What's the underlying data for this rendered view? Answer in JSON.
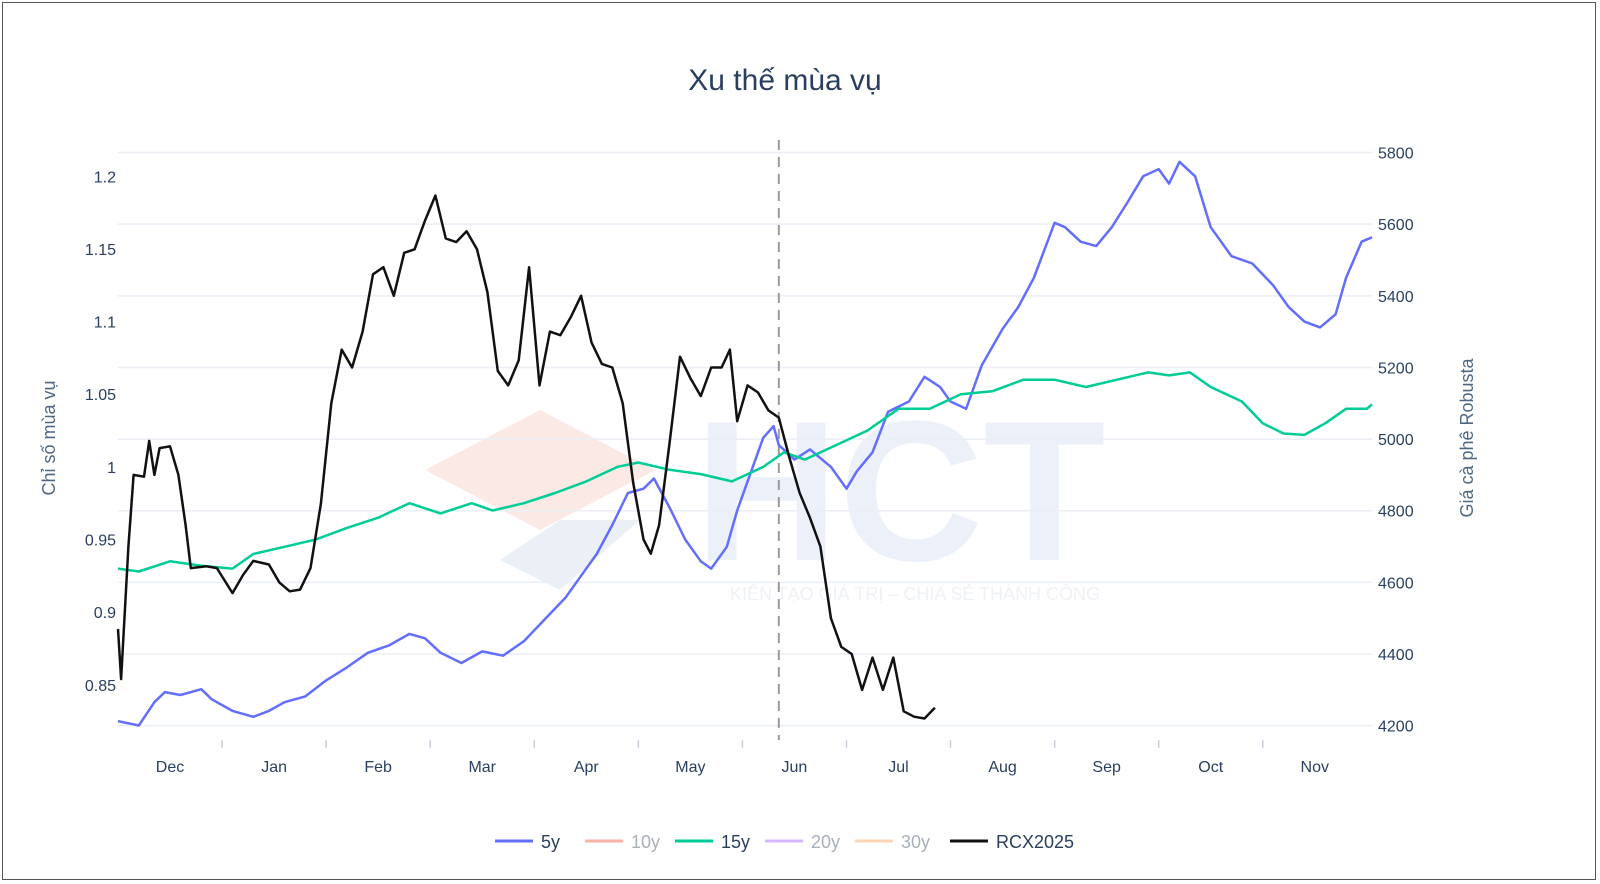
{
  "chart_data": {
    "type": "line",
    "title": "Xu thế mùa vụ",
    "watermark": {
      "logo": "HCT",
      "tagline": "KIẾN TẠO GIÁ TRỊ – CHIA SẺ THÀNH CÔNG"
    },
    "x": {
      "tick_labels": [
        "Dec",
        "Jan",
        "Feb",
        "Mar",
        "Apr",
        "May",
        "Jun",
        "Jul",
        "Aug",
        "Sep",
        "Oct",
        "Nov"
      ],
      "range": [
        0,
        12.05
      ],
      "divider_at": 6.35
    },
    "y_left": {
      "label": "Chỉ số mùa vụ",
      "range": [
        0.812,
        1.225
      ],
      "ticks": [
        0.85,
        0.9,
        0.95,
        1,
        1.05,
        1.1,
        1.15,
        1.2
      ],
      "tick_labels": [
        "0.85",
        "0.9",
        "0.95",
        "1",
        "1.05",
        "1.1",
        "1.15",
        "1.2"
      ]
    },
    "y_right": {
      "label": "Giá cà phê Robusta",
      "range": [
        4160,
        5835
      ],
      "ticks": [
        4200,
        4400,
        4600,
        4800,
        5000,
        5200,
        5400,
        5600,
        5800
      ],
      "tick_labels": [
        "4200",
        "4400",
        "4600",
        "4800",
        "5000",
        "5200",
        "5400",
        "5600",
        "5800"
      ]
    },
    "legend": {
      "position": "bottom-center",
      "items": [
        {
          "name": "5y",
          "color": "#636efa",
          "active": true
        },
        {
          "name": "10y",
          "color": "#ef553b",
          "active": false
        },
        {
          "name": "15y",
          "color": "#00cc96",
          "active": true
        },
        {
          "name": "20y",
          "color": "#ab63fa",
          "active": false
        },
        {
          "name": "30y",
          "color": "#ffa15a",
          "active": false
        },
        {
          "name": "RCX2025",
          "color": "#111111",
          "active": true
        }
      ]
    },
    "series": [
      {
        "name": "5y",
        "axis": "left",
        "color": "#636efa",
        "points": [
          [
            0,
            0.825
          ],
          [
            0.2,
            0.822
          ],
          [
            0.35,
            0.838
          ],
          [
            0.45,
            0.845
          ],
          [
            0.6,
            0.843
          ],
          [
            0.8,
            0.847
          ],
          [
            0.9,
            0.84
          ],
          [
            1.1,
            0.832
          ],
          [
            1.3,
            0.828
          ],
          [
            1.45,
            0.832
          ],
          [
            1.6,
            0.838
          ],
          [
            1.8,
            0.842
          ],
          [
            2.0,
            0.853
          ],
          [
            2.2,
            0.862
          ],
          [
            2.4,
            0.872
          ],
          [
            2.6,
            0.877
          ],
          [
            2.8,
            0.885
          ],
          [
            2.95,
            0.882
          ],
          [
            3.1,
            0.872
          ],
          [
            3.3,
            0.865
          ],
          [
            3.5,
            0.873
          ],
          [
            3.7,
            0.87
          ],
          [
            3.9,
            0.88
          ],
          [
            4.1,
            0.895
          ],
          [
            4.3,
            0.91
          ],
          [
            4.45,
            0.925
          ],
          [
            4.6,
            0.94
          ],
          [
            4.75,
            0.96
          ],
          [
            4.9,
            0.982
          ],
          [
            5.05,
            0.985
          ],
          [
            5.15,
            0.992
          ],
          [
            5.3,
            0.972
          ],
          [
            5.45,
            0.95
          ],
          [
            5.6,
            0.935
          ],
          [
            5.7,
            0.93
          ],
          [
            5.85,
            0.945
          ],
          [
            5.95,
            0.97
          ],
          [
            6.05,
            0.99
          ],
          [
            6.2,
            1.02
          ],
          [
            6.3,
            1.028
          ],
          [
            6.35,
            1.015
          ],
          [
            6.5,
            1.005
          ],
          [
            6.65,
            1.012
          ],
          [
            6.85,
            1.0
          ],
          [
            7.0,
            0.985
          ],
          [
            7.1,
            0.997
          ],
          [
            7.25,
            1.01
          ],
          [
            7.4,
            1.038
          ],
          [
            7.6,
            1.045
          ],
          [
            7.75,
            1.062
          ],
          [
            7.9,
            1.055
          ],
          [
            8.0,
            1.045
          ],
          [
            8.15,
            1.04
          ],
          [
            8.3,
            1.07
          ],
          [
            8.5,
            1.095
          ],
          [
            8.65,
            1.11
          ],
          [
            8.8,
            1.13
          ],
          [
            9.0,
            1.168
          ],
          [
            9.1,
            1.165
          ],
          [
            9.25,
            1.155
          ],
          [
            9.4,
            1.152
          ],
          [
            9.55,
            1.165
          ],
          [
            9.7,
            1.182
          ],
          [
            9.85,
            1.2
          ],
          [
            10.0,
            1.205
          ],
          [
            10.1,
            1.195
          ],
          [
            10.2,
            1.21
          ],
          [
            10.35,
            1.2
          ],
          [
            10.5,
            1.165
          ],
          [
            10.7,
            1.145
          ],
          [
            10.9,
            1.14
          ],
          [
            11.1,
            1.125
          ],
          [
            11.25,
            1.11
          ],
          [
            11.4,
            1.1
          ],
          [
            11.55,
            1.096
          ],
          [
            11.7,
            1.105
          ],
          [
            11.8,
            1.13
          ],
          [
            11.95,
            1.155
          ],
          [
            12.05,
            1.158
          ]
        ]
      },
      {
        "name": "15y",
        "axis": "left",
        "color": "#00cc96",
        "points": [
          [
            0,
            0.93
          ],
          [
            0.2,
            0.928
          ],
          [
            0.5,
            0.935
          ],
          [
            0.8,
            0.932
          ],
          [
            1.1,
            0.93
          ],
          [
            1.3,
            0.94
          ],
          [
            1.6,
            0.945
          ],
          [
            1.9,
            0.95
          ],
          [
            2.2,
            0.958
          ],
          [
            2.5,
            0.965
          ],
          [
            2.8,
            0.975
          ],
          [
            3.1,
            0.968
          ],
          [
            3.4,
            0.975
          ],
          [
            3.6,
            0.97
          ],
          [
            3.9,
            0.975
          ],
          [
            4.2,
            0.982
          ],
          [
            4.5,
            0.99
          ],
          [
            4.8,
            1.0
          ],
          [
            5.0,
            1.003
          ],
          [
            5.3,
            0.998
          ],
          [
            5.6,
            0.995
          ],
          [
            5.9,
            0.99
          ],
          [
            6.2,
            1.0
          ],
          [
            6.4,
            1.01
          ],
          [
            6.6,
            1.005
          ],
          [
            6.9,
            1.015
          ],
          [
            7.2,
            1.025
          ],
          [
            7.5,
            1.04
          ],
          [
            7.8,
            1.04
          ],
          [
            8.1,
            1.05
          ],
          [
            8.4,
            1.052
          ],
          [
            8.7,
            1.06
          ],
          [
            9.0,
            1.06
          ],
          [
            9.3,
            1.055
          ],
          [
            9.6,
            1.06
          ],
          [
            9.9,
            1.065
          ],
          [
            10.1,
            1.063
          ],
          [
            10.3,
            1.065
          ],
          [
            10.5,
            1.055
          ],
          [
            10.8,
            1.045
          ],
          [
            11.0,
            1.03
          ],
          [
            11.2,
            1.023
          ],
          [
            11.4,
            1.022
          ],
          [
            11.6,
            1.03
          ],
          [
            11.8,
            1.04
          ],
          [
            12.0,
            1.04
          ],
          [
            12.05,
            1.043
          ]
        ]
      },
      {
        "name": "RCX2025",
        "axis": "right",
        "color": "#111111",
        "points": [
          [
            0,
            4470
          ],
          [
            0.03,
            4330
          ],
          [
            0.1,
            4700
          ],
          [
            0.15,
            4900
          ],
          [
            0.25,
            4895
          ],
          [
            0.3,
            4995
          ],
          [
            0.35,
            4900
          ],
          [
            0.4,
            4975
          ],
          [
            0.5,
            4980
          ],
          [
            0.58,
            4900
          ],
          [
            0.65,
            4760
          ],
          [
            0.7,
            4640
          ],
          [
            0.85,
            4645
          ],
          [
            0.95,
            4640
          ],
          [
            1.1,
            4570
          ],
          [
            1.2,
            4620
          ],
          [
            1.3,
            4660
          ],
          [
            1.45,
            4650
          ],
          [
            1.55,
            4600
          ],
          [
            1.65,
            4575
          ],
          [
            1.75,
            4580
          ],
          [
            1.85,
            4640
          ],
          [
            1.95,
            4820
          ],
          [
            2.05,
            5100
          ],
          [
            2.15,
            5250
          ],
          [
            2.25,
            5200
          ],
          [
            2.35,
            5300
          ],
          [
            2.45,
            5460
          ],
          [
            2.55,
            5480
          ],
          [
            2.65,
            5400
          ],
          [
            2.75,
            5520
          ],
          [
            2.85,
            5530
          ],
          [
            2.95,
            5610
          ],
          [
            3.05,
            5680
          ],
          [
            3.15,
            5560
          ],
          [
            3.25,
            5550
          ],
          [
            3.35,
            5580
          ],
          [
            3.45,
            5530
          ],
          [
            3.55,
            5410
          ],
          [
            3.65,
            5190
          ],
          [
            3.75,
            5150
          ],
          [
            3.85,
            5220
          ],
          [
            3.95,
            5480
          ],
          [
            4.05,
            5150
          ],
          [
            4.15,
            5300
          ],
          [
            4.25,
            5290
          ],
          [
            4.35,
            5340
          ],
          [
            4.45,
            5400
          ],
          [
            4.55,
            5270
          ],
          [
            4.65,
            5210
          ],
          [
            4.75,
            5200
          ],
          [
            4.85,
            5100
          ],
          [
            4.95,
            4880
          ],
          [
            5.05,
            4720
          ],
          [
            5.12,
            4680
          ],
          [
            5.2,
            4760
          ],
          [
            5.3,
            4990
          ],
          [
            5.4,
            5230
          ],
          [
            5.5,
            5170
          ],
          [
            5.6,
            5120
          ],
          [
            5.7,
            5200
          ],
          [
            5.8,
            5200
          ],
          [
            5.88,
            5250
          ],
          [
            5.95,
            5050
          ],
          [
            6.05,
            5150
          ],
          [
            6.15,
            5130
          ],
          [
            6.25,
            5080
          ],
          [
            6.35,
            5060
          ],
          [
            6.45,
            4950
          ],
          [
            6.55,
            4850
          ],
          [
            6.65,
            4780
          ],
          [
            6.75,
            4700
          ],
          [
            6.85,
            4500
          ],
          [
            6.95,
            4420
          ],
          [
            7.05,
            4400
          ],
          [
            7.15,
            4300
          ],
          [
            7.25,
            4390
          ],
          [
            7.35,
            4300
          ],
          [
            7.45,
            4390
          ],
          [
            7.55,
            4240
          ],
          [
            7.65,
            4225
          ],
          [
            7.75,
            4220
          ],
          [
            7.85,
            4250
          ]
        ]
      }
    ]
  }
}
